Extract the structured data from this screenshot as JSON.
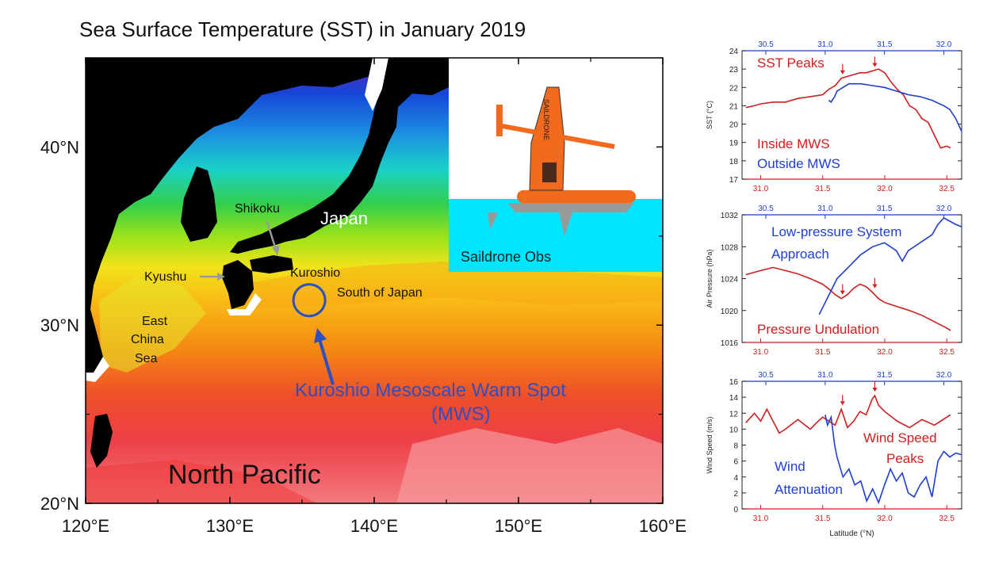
{
  "map": {
    "title": "Sea Surface Temperature (SST) in January 2019",
    "lon_ticks": [
      "120°E",
      "130°E",
      "140°E",
      "150°E",
      "160°E"
    ],
    "lat_ticks": [
      "40°N",
      "30°N",
      "20°N"
    ],
    "extent": {
      "lon": [
        120,
        160
      ],
      "lat": [
        20,
        45
      ]
    },
    "labels": {
      "shikoku": "Shikoku",
      "japan": "Japan",
      "kyushu": "Kyushu",
      "kuroshio": "Kuroshio",
      "south_of_japan": "South of Japan",
      "east_china_sea": [
        "East",
        "China",
        "Sea"
      ],
      "mws_line1": "Kuroshio Mesoscale Warm Spot",
      "mws_line2": "(MWS)",
      "north_pacific": "North Pacific"
    },
    "inset": {
      "caption": "Saildrone Obs",
      "sail_text": "SAILDRONE",
      "water_color": "#00e5ff"
    },
    "mws_center": {
      "lon": 135.5,
      "lat": 31.4
    }
  },
  "chart_data": [
    {
      "type": "line",
      "ylabel": "SST (°C)",
      "ylim": [
        17,
        24
      ],
      "yticks": [
        17,
        18,
        19,
        20,
        21,
        22,
        23,
        24
      ],
      "xlim_bottom": [
        30.85,
        32.62
      ],
      "xticks_bottom": [
        31.0,
        31.5,
        32.0,
        32.5
      ],
      "xlim_top": [
        30.3,
        32.15
      ],
      "xticks_top": [
        30.5,
        31.0,
        31.5,
        32.0
      ],
      "annotations": [
        "SST Peaks",
        "Inside MWS",
        "Outside MWS"
      ],
      "arrows_at": [
        31.66,
        31.92
      ],
      "series": [
        {
          "name": "Inside MWS",
          "color": "#cc1f1f",
          "axis": "bottom",
          "x": [
            30.88,
            30.95,
            31.0,
            31.1,
            31.2,
            31.3,
            31.4,
            31.5,
            31.55,
            31.6,
            31.65,
            31.7,
            31.75,
            31.8,
            31.85,
            31.9,
            31.95,
            32.0,
            32.05,
            32.1,
            32.15,
            32.2,
            32.25,
            32.3,
            32.35,
            32.4,
            32.45,
            32.5,
            32.53
          ],
          "values": [
            20.9,
            21.0,
            21.1,
            21.2,
            21.2,
            21.4,
            21.5,
            21.6,
            21.9,
            22.1,
            22.5,
            22.6,
            22.7,
            22.8,
            22.8,
            22.9,
            23.0,
            22.8,
            22.3,
            21.9,
            21.6,
            21.0,
            20.8,
            20.3,
            20.1,
            19.4,
            18.7,
            18.8,
            18.7
          ]
        },
        {
          "name": "Outside MWS",
          "color": "#1e3fcc",
          "axis": "top",
          "x": [
            31.03,
            31.05,
            31.08,
            31.1,
            31.15,
            31.2,
            31.3,
            31.4,
            31.5,
            31.6,
            31.7,
            31.8,
            31.9,
            32.0,
            32.05,
            32.1,
            32.15
          ],
          "values": [
            21.3,
            21.2,
            21.5,
            21.8,
            22.0,
            22.2,
            22.2,
            22.1,
            22.0,
            21.8,
            21.6,
            21.5,
            21.3,
            21.0,
            20.8,
            20.3,
            19.6
          ]
        }
      ]
    },
    {
      "type": "line",
      "ylabel": "Air Pressure (hPa)",
      "ylim": [
        1016,
        1032
      ],
      "yticks": [
        1016,
        1020,
        1024,
        1028,
        1032
      ],
      "xlim_bottom": [
        30.85,
        32.62
      ],
      "xticks_bottom": [
        31.0,
        31.5,
        32.0,
        32.5
      ],
      "xlim_top": [
        30.3,
        32.15
      ],
      "xticks_top": [
        30.5,
        31.0,
        31.5,
        32.0
      ],
      "annotations": [
        "Low-pressure System",
        "Approach",
        "Pressure Undulation"
      ],
      "arrows_at": [
        31.66,
        31.92
      ],
      "series": [
        {
          "name": "Pressure (red)",
          "color": "#cc1f1f",
          "axis": "bottom",
          "x": [
            30.88,
            31.0,
            31.1,
            31.2,
            31.3,
            31.4,
            31.5,
            31.55,
            31.6,
            31.65,
            31.7,
            31.75,
            31.8,
            31.85,
            31.9,
            31.95,
            32.0,
            32.1,
            32.2,
            32.3,
            32.4,
            32.5,
            32.53
          ],
          "values": [
            1024.5,
            1025.0,
            1025.4,
            1025.0,
            1024.6,
            1024.0,
            1023.3,
            1022.7,
            1022.0,
            1021.5,
            1022.0,
            1022.8,
            1023.3,
            1023.0,
            1022.3,
            1021.5,
            1021.0,
            1020.5,
            1020.0,
            1019.4,
            1018.6,
            1017.8,
            1017.5
          ]
        },
        {
          "name": "Pressure (blue)",
          "color": "#1e3fcc",
          "axis": "top",
          "x": [
            30.95,
            31.0,
            31.05,
            31.1,
            31.2,
            31.3,
            31.4,
            31.5,
            31.55,
            31.6,
            31.65,
            31.7,
            31.8,
            31.9,
            31.95,
            32.0,
            32.05,
            32.1,
            32.15
          ],
          "values": [
            1019.5,
            1021.0,
            1022.5,
            1024.0,
            1025.5,
            1027.0,
            1028.0,
            1028.5,
            1028.0,
            1027.5,
            1026.2,
            1027.5,
            1028.5,
            1029.5,
            1030.8,
            1031.6,
            1031.2,
            1030.8,
            1030.5
          ]
        }
      ]
    },
    {
      "type": "line",
      "ylabel": "Wind Speed (m/s)",
      "xlabel": "Latitude (°N)",
      "ylim": [
        0,
        16
      ],
      "yticks": [
        0,
        2,
        4,
        6,
        8,
        10,
        12,
        14,
        16
      ],
      "xlim_bottom": [
        30.85,
        32.62
      ],
      "xticks_bottom": [
        31.0,
        31.5,
        32.0,
        32.5
      ],
      "xlim_top": [
        30.3,
        32.15
      ],
      "xticks_top": [
        30.5,
        31.0,
        31.5,
        32.0
      ],
      "annotations": [
        "Wind Speed",
        "Peaks",
        "Wind",
        "Attenuation"
      ],
      "arrows_at": [
        31.66,
        31.92
      ],
      "series": [
        {
          "name": "Wind Speed (red)",
          "color": "#cc1f1f",
          "axis": "bottom",
          "x": [
            30.88,
            30.95,
            31.0,
            31.05,
            31.1,
            31.15,
            31.2,
            31.3,
            31.4,
            31.45,
            31.5,
            31.55,
            31.6,
            31.65,
            31.7,
            31.75,
            31.8,
            31.85,
            31.9,
            31.92,
            31.95,
            32.0,
            32.05,
            32.1,
            32.2,
            32.3,
            32.4,
            32.5,
            32.53
          ],
          "values": [
            10.8,
            12.0,
            11.0,
            12.5,
            11.0,
            9.5,
            10.0,
            11.2,
            10.0,
            10.8,
            11.5,
            11.0,
            10.5,
            12.5,
            10.2,
            11.0,
            12.2,
            11.8,
            13.8,
            14.2,
            13.0,
            12.2,
            11.6,
            11.0,
            10.2,
            11.2,
            10.5,
            11.5,
            11.8
          ]
        },
        {
          "name": "Wind Speed (blue)",
          "color": "#1e3fcc",
          "axis": "top",
          "x": [
            31.0,
            31.02,
            31.05,
            31.08,
            31.1,
            31.12,
            31.15,
            31.2,
            31.25,
            31.3,
            31.35,
            31.4,
            31.45,
            31.5,
            31.55,
            31.6,
            31.65,
            31.7,
            31.75,
            31.8,
            31.85,
            31.9,
            31.95,
            32.0,
            32.05,
            32.1,
            32.15
          ],
          "values": [
            11.8,
            10.5,
            11.5,
            8.0,
            6.5,
            5.5,
            4.0,
            5.0,
            3.0,
            3.5,
            1.0,
            2.5,
            0.8,
            3.0,
            5.0,
            3.5,
            4.5,
            2.0,
            1.5,
            3.0,
            4.0,
            1.5,
            6.0,
            7.2,
            6.5,
            7.0,
            6.8
          ]
        }
      ]
    }
  ]
}
